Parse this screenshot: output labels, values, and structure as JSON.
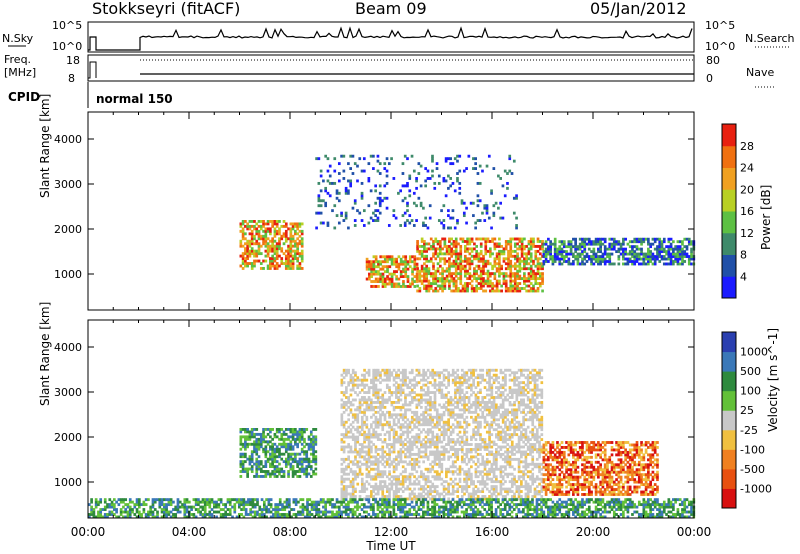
{
  "header": {
    "station": "Stokkseyri (fitACF)",
    "beam": "Beam 09",
    "date": "05/Jan/2012"
  },
  "noise_panel": {
    "left_label": "N.Sky",
    "left_ticks": [
      "10^5",
      "10^0"
    ],
    "right_label": "N.Search",
    "right_ticks": [
      "10^5",
      "10^0"
    ]
  },
  "freq_panel": {
    "left_label_1": "Freq.",
    "left_label_2": "[MHz]",
    "left_ticks": [
      "18",
      "8"
    ],
    "right_label": "Nave",
    "right_ticks": [
      "80",
      "0"
    ]
  },
  "cpid": {
    "label": "CPID",
    "value": "normal 150"
  },
  "chart_data": [
    {
      "type": "heatmap",
      "panel": "power",
      "xlabel": "Time UT",
      "ylabel": "Slant Range [km]",
      "x_ticks": [
        "00:00",
        "04:00",
        "08:00",
        "12:00",
        "16:00",
        "20:00",
        "00:00"
      ],
      "y_ticks": [
        "1000",
        "2000",
        "3000",
        "4000"
      ],
      "xlim_hours": [
        0,
        24
      ],
      "ylim_km": [
        200,
        4600
      ],
      "colorbar_label": "Power [dB]",
      "colorbar_ticks": [
        "4",
        "8",
        "12",
        "16",
        "20",
        "24",
        "28"
      ],
      "colorbar_colors": [
        "#1b1bff",
        "#2050a8",
        "#3e8a6a",
        "#5dc043",
        "#b8d023",
        "#f0a020",
        "#f07010",
        "#e82010"
      ],
      "data_gap_hours": [
        0.35,
        2.0
      ],
      "echo_regions": [
        {
          "t_start": 6.0,
          "t_end": 8.5,
          "range_lo_km": 1100,
          "range_hi_km": 2200,
          "level": "high"
        },
        {
          "t_start": 11.0,
          "t_end": 13.0,
          "range_lo_km": 700,
          "range_hi_km": 1400,
          "level": "high"
        },
        {
          "t_start": 13.0,
          "t_end": 18.0,
          "range_lo_km": 600,
          "range_hi_km": 1800,
          "level": "high"
        },
        {
          "t_start": 18.0,
          "t_end": 24.0,
          "range_lo_km": 1200,
          "range_hi_km": 1800,
          "level": "low"
        },
        {
          "t_start": 9.0,
          "t_end": 17.0,
          "range_lo_km": 2000,
          "range_hi_km": 3600,
          "level": "scattered"
        }
      ]
    },
    {
      "type": "heatmap",
      "panel": "velocity",
      "xlabel": "Time UT",
      "ylabel": "Slant Range [km]",
      "x_ticks": [
        "00:00",
        "04:00",
        "08:00",
        "12:00",
        "16:00",
        "20:00",
        "00:00"
      ],
      "y_ticks": [
        "1000",
        "2000",
        "3000",
        "4000"
      ],
      "xlim_hours": [
        0,
        24
      ],
      "ylim_km": [
        200,
        4600
      ],
      "colorbar_label": "Velocity [m s^-1]",
      "colorbar_ticks": [
        "1000",
        "500",
        "100",
        "25",
        "-25",
        "-100",
        "-500",
        "-1000"
      ],
      "colorbar_colors": [
        "#2a3fb0",
        "#3a78b8",
        "#2e8a3e",
        "#62c038",
        "#c8c8c8",
        "#f0c040",
        "#f08020",
        "#e85010",
        "#d81010"
      ],
      "echo_regions": [
        {
          "t_start": 6.0,
          "t_end": 9.0,
          "range_lo_km": 1100,
          "range_hi_km": 2200,
          "sign": "positive"
        },
        {
          "t_start": 10.0,
          "t_end": 18.0,
          "range_lo_km": 600,
          "range_hi_km": 3500,
          "sign": "near-zero"
        },
        {
          "t_start": 18.0,
          "t_end": 22.5,
          "range_lo_km": 700,
          "range_hi_km": 1900,
          "sign": "negative"
        },
        {
          "t_start": 0.0,
          "t_end": 24.0,
          "range_lo_km": 200,
          "range_hi_km": 600,
          "sign": "positive"
        }
      ]
    }
  ]
}
